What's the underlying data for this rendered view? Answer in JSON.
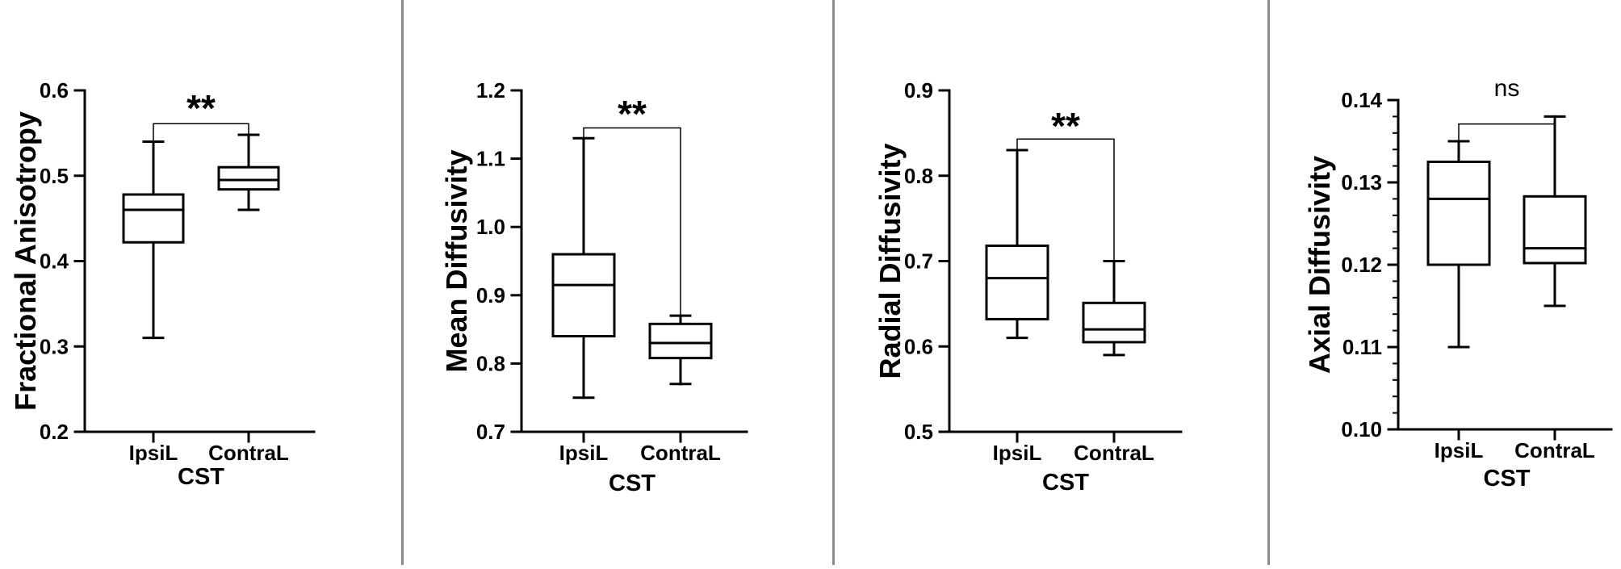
{
  "chart_data": [
    {
      "type": "box",
      "ylabel": "Fractional Anisotropy",
      "xlabel": "CST",
      "ylim": [
        0.2,
        0.6
      ],
      "yticks": [
        "0.2",
        "0.3",
        "0.4",
        "0.5",
        "0.6"
      ],
      "minor_ticks_per_major": 0,
      "categories": [
        "IpsiL",
        "ContraL"
      ],
      "boxes": [
        {
          "min": 0.31,
          "q1": 0.422,
          "median": 0.46,
          "q3": 0.478,
          "max": 0.54
        },
        {
          "min": 0.46,
          "q1": 0.484,
          "median": 0.495,
          "q3": 0.51,
          "max": 0.548
        }
      ],
      "significance": {
        "label": "**",
        "bar_y": 0.561,
        "left_end": 0.54,
        "right_end": 0.548
      }
    },
    {
      "type": "box",
      "ylabel": "Mean Diffusivity",
      "xlabel": "CST",
      "ylim": [
        0.7,
        1.2
      ],
      "yticks": [
        "0.7",
        "0.8",
        "0.9",
        "1.0",
        "1.1",
        "1.2"
      ],
      "minor_ticks_per_major": 0,
      "categories": [
        "IpsiL",
        "ContraL"
      ],
      "boxes": [
        {
          "min": 0.75,
          "q1": 0.84,
          "median": 0.915,
          "q3": 0.96,
          "max": 1.13
        },
        {
          "min": 0.77,
          "q1": 0.808,
          "median": 0.83,
          "q3": 0.858,
          "max": 0.87
        }
      ],
      "significance": {
        "label": "**",
        "bar_y": 1.145,
        "left_end": 1.13,
        "right_end": 0.87
      }
    },
    {
      "type": "box",
      "ylabel": "Radial Diffusivity",
      "xlabel": "CST",
      "ylim": [
        0.5,
        0.9
      ],
      "yticks": [
        "0.5",
        "0.6",
        "0.7",
        "0.8",
        "0.9"
      ],
      "minor_ticks_per_major": 0,
      "categories": [
        "IpsiL",
        "ContraL"
      ],
      "boxes": [
        {
          "min": 0.61,
          "q1": 0.632,
          "median": 0.68,
          "q3": 0.718,
          "max": 0.83
        },
        {
          "min": 0.59,
          "q1": 0.605,
          "median": 0.62,
          "q3": 0.651,
          "max": 0.7
        }
      ],
      "significance": {
        "label": "**",
        "bar_y": 0.843,
        "left_end": 0.83,
        "right_end": 0.7
      }
    },
    {
      "type": "box",
      "ylabel": "Axial Diffusivity",
      "xlabel": "CST",
      "ylim": [
        0.1,
        0.14
      ],
      "yticks": [
        "0.10",
        "0.11",
        "0.12",
        "0.13",
        "0.14"
      ],
      "minor_ticks_per_major": 4,
      "categories": [
        "IpsiL",
        "ContraL"
      ],
      "boxes": [
        {
          "min": 0.11,
          "q1": 0.12,
          "median": 0.128,
          "q3": 0.1325,
          "max": 0.135
        },
        {
          "min": 0.115,
          "q1": 0.1202,
          "median": 0.122,
          "q3": 0.1283,
          "max": 0.138
        }
      ],
      "significance": {
        "label": "ns",
        "bar_y": 0.1371,
        "left_end": 0.135,
        "right_end": 0.138
      }
    }
  ]
}
